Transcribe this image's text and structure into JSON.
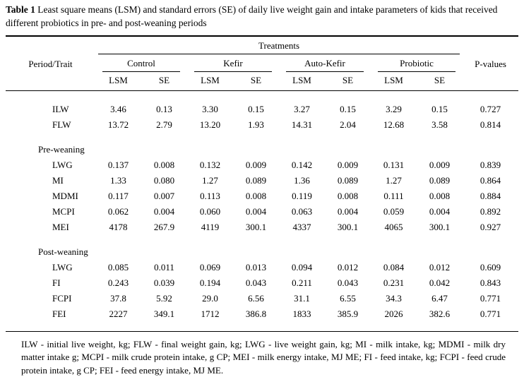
{
  "caption": {
    "label": "Table 1",
    "text": " Least square means (LSM) and standard errors (SE) of daily live weight gain and intake parameters of kids that received different probiotics in pre- and post-weaning periods"
  },
  "table": {
    "treatments_header": "Treatments",
    "period_trait_header": "Period/Trait",
    "pvalues_header": "P-values",
    "groups": [
      "Control",
      "Kefir",
      "Auto-Kefir",
      "Probiotic"
    ],
    "subheaders": [
      "LSM",
      "SE"
    ],
    "rows": [
      {
        "t": "data",
        "trait": "ILW",
        "v": [
          "3.46",
          "0.13",
          "3.30",
          "0.15",
          "3.27",
          "0.15",
          "3.29",
          "0.15"
        ],
        "p": "0.727"
      },
      {
        "t": "data",
        "trait": "FLW",
        "v": [
          "13.72",
          "2.79",
          "13.20",
          "1.93",
          "14.31",
          "2.04",
          "12.68",
          "3.58"
        ],
        "p": "0.814"
      },
      {
        "t": "spacer"
      },
      {
        "t": "section",
        "trait": "Pre-weaning"
      },
      {
        "t": "data",
        "trait": "LWG",
        "v": [
          "0.137",
          "0.008",
          "0.132",
          "0.009",
          "0.142",
          "0.009",
          "0.131",
          "0.009"
        ],
        "p": "0.839"
      },
      {
        "t": "data",
        "trait": "MI",
        "v": [
          "1.33",
          "0.080",
          "1.27",
          "0.089",
          "1.36",
          "0.089",
          "1.27",
          "0.089"
        ],
        "p": "0.864"
      },
      {
        "t": "data",
        "trait": "MDMI",
        "v": [
          "0.117",
          "0.007",
          "0.113",
          "0.008",
          "0.119",
          "0.008",
          "0.111",
          "0.008"
        ],
        "p": "0.884"
      },
      {
        "t": "data",
        "trait": "MCPI",
        "v": [
          "0.062",
          "0.004",
          "0.060",
          "0.004",
          "0.063",
          "0.004",
          "0.059",
          "0.004"
        ],
        "p": "0.892"
      },
      {
        "t": "data",
        "trait": "MEI",
        "v": [
          "4178",
          "267.9",
          "4119",
          "300.1",
          "4337",
          "300.1",
          "4065",
          "300.1"
        ],
        "p": "0.927"
      },
      {
        "t": "spacer"
      },
      {
        "t": "section",
        "trait": "Post-weaning"
      },
      {
        "t": "data",
        "trait": "LWG",
        "v": [
          "0.085",
          "0.011",
          "0.069",
          "0.013",
          "0.094",
          "0.012",
          "0.084",
          "0.012"
        ],
        "p": "0.609"
      },
      {
        "t": "data",
        "trait": "FI",
        "v": [
          "0.243",
          "0.039",
          "0.194",
          "0.043",
          "0.211",
          "0.043",
          "0.231",
          "0.042"
        ],
        "p": "0.843"
      },
      {
        "t": "data",
        "trait": "FCPI",
        "v": [
          "37.8",
          "5.92",
          "29.0",
          "6.56",
          "31.1",
          "6.55",
          "34.3",
          "6.47"
        ],
        "p": "0.771"
      },
      {
        "t": "data",
        "trait": "FEI",
        "v": [
          "2227",
          "349.1",
          "1712",
          "386.8",
          "1833",
          "385.9",
          "2026",
          "382.6"
        ],
        "p": "0.771"
      }
    ]
  },
  "footnote": "ILW - initial live weight, kg; FLW - final weight gain, kg; LWG - live weight gain, kg; MI - milk intake, kg; MDMI - milk dry matter intake g; MCPI - milk crude protein intake, g CP; MEI - milk energy intake, MJ ME; FI - feed intake, kg; FCPI - feed crude protein intake, g CP; FEI - feed energy intake, MJ ME."
}
